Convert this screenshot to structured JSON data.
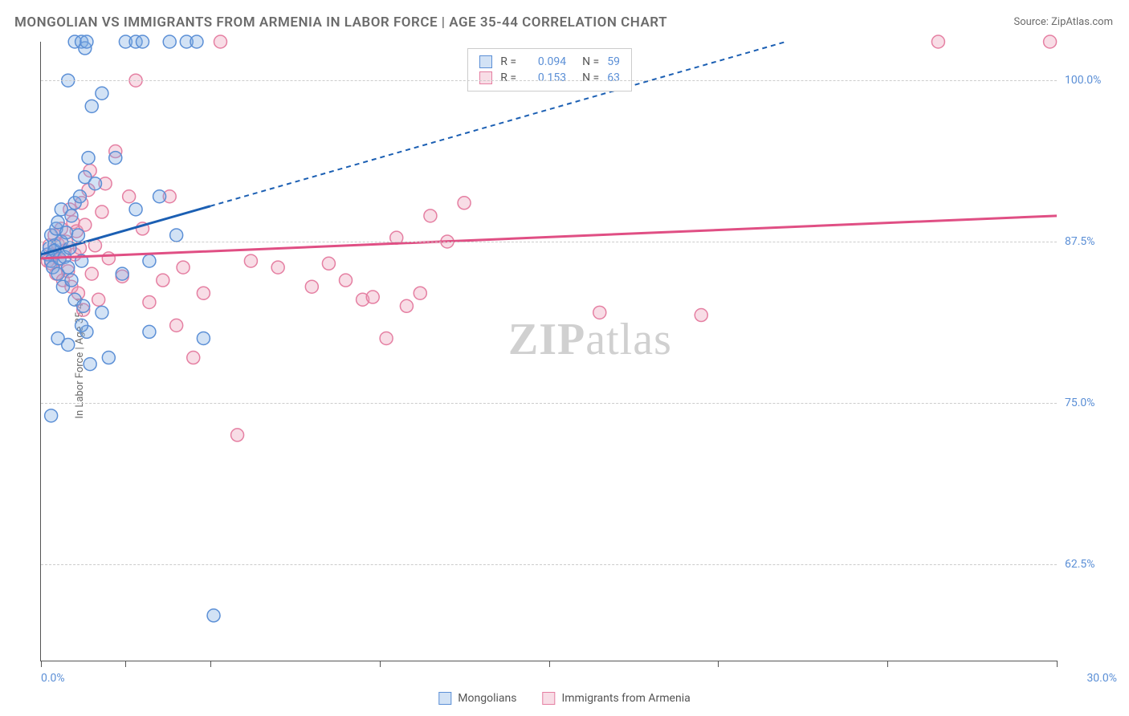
{
  "title": "MONGOLIAN VS IMMIGRANTS FROM ARMENIA IN LABOR FORCE | AGE 35-44 CORRELATION CHART",
  "source": "Source: ZipAtlas.com",
  "y_axis_title": "In Labor Force | Age 35-44",
  "watermark_bold": "ZIP",
  "watermark_rest": "atlas",
  "chart": {
    "type": "scatter",
    "xlim": [
      0,
      30
    ],
    "ylim": [
      55,
      103
    ],
    "y_ticks": [
      62.5,
      75.0,
      87.5,
      100.0
    ],
    "y_tick_labels": [
      "62.5%",
      "75.0%",
      "87.5%",
      "100.0%"
    ],
    "x_ticks": [
      0,
      2.5,
      5,
      10,
      15,
      20,
      25,
      30
    ],
    "x_label_min": "0.0%",
    "x_label_max": "30.0%",
    "background_color": "#ffffff",
    "grid_color": "#cccccc",
    "series": [
      {
        "name": "Mongolians",
        "color_fill": "rgba(127,172,226,0.35)",
        "color_stroke": "#5b8fd6",
        "trend_color": "#1b5fb3",
        "trend_solid_end_x": 5.0,
        "trend_y_start": 86.5,
        "trend_y_end": 103.0,
        "trend_dash_end_x": 22.0,
        "marker_radius": 8,
        "R": "0.094",
        "N": "59",
        "points": [
          [
            0.2,
            86.5
          ],
          [
            0.25,
            87
          ],
          [
            0.3,
            86
          ],
          [
            0.3,
            88
          ],
          [
            0.35,
            85.5
          ],
          [
            0.4,
            87.2
          ],
          [
            0.4,
            86.8
          ],
          [
            0.45,
            88.5
          ],
          [
            0.5,
            85
          ],
          [
            0.5,
            89
          ],
          [
            0.55,
            86.2
          ],
          [
            0.6,
            87.5
          ],
          [
            0.6,
            90
          ],
          [
            0.65,
            84
          ],
          [
            0.7,
            86.3
          ],
          [
            0.75,
            88.2
          ],
          [
            0.8,
            85.5
          ],
          [
            0.85,
            87
          ],
          [
            0.9,
            89.5
          ],
          [
            0.9,
            84.5
          ],
          [
            1.0,
            90.5
          ],
          [
            1.0,
            83
          ],
          [
            1.1,
            88
          ],
          [
            1.15,
            91
          ],
          [
            1.2,
            86
          ],
          [
            1.25,
            82.5
          ],
          [
            1.3,
            92.5
          ],
          [
            1.35,
            80.5
          ],
          [
            1.4,
            94
          ],
          [
            1.45,
            78
          ],
          [
            0.8,
            100
          ],
          [
            1.0,
            103
          ],
          [
            1.2,
            103
          ],
          [
            1.3,
            102.5
          ],
          [
            1.35,
            103
          ],
          [
            1.8,
            99
          ],
          [
            2.5,
            103
          ],
          [
            2.8,
            103
          ],
          [
            3.0,
            103
          ],
          [
            1.5,
            98
          ],
          [
            0.3,
            74
          ],
          [
            0.5,
            80
          ],
          [
            0.8,
            79.5
          ],
          [
            1.2,
            81
          ],
          [
            1.6,
            92
          ],
          [
            2.2,
            94
          ],
          [
            2.4,
            85
          ],
          [
            3.2,
            86
          ],
          [
            3.5,
            91
          ],
          [
            3.8,
            103
          ],
          [
            4.0,
            88
          ],
          [
            4.3,
            103
          ],
          [
            4.6,
            103
          ],
          [
            4.8,
            80
          ],
          [
            1.8,
            82
          ],
          [
            2.8,
            90
          ],
          [
            5.1,
            58.5
          ],
          [
            3.2,
            80.5
          ],
          [
            2.0,
            78.5
          ]
        ]
      },
      {
        "name": "Immigrants from Armenia",
        "color_fill": "rgba(236,159,184,0.35)",
        "color_stroke": "#e57fa2",
        "trend_color": "#e04f84",
        "trend_solid_end_x": 30.0,
        "trend_y_start": 86.2,
        "trend_y_end": 89.5,
        "trend_dash_end_x": 30.0,
        "marker_radius": 8,
        "R": "0.153",
        "N": "63",
        "points": [
          [
            0.2,
            86
          ],
          [
            0.25,
            87.2
          ],
          [
            0.3,
            85.8
          ],
          [
            0.35,
            86.5
          ],
          [
            0.4,
            88
          ],
          [
            0.45,
            85
          ],
          [
            0.5,
            87.3
          ],
          [
            0.55,
            86.1
          ],
          [
            0.6,
            88.5
          ],
          [
            0.65,
            84.5
          ],
          [
            0.7,
            86.8
          ],
          [
            0.75,
            87.5
          ],
          [
            0.8,
            85.2
          ],
          [
            0.85,
            90
          ],
          [
            0.9,
            84
          ],
          [
            0.95,
            89
          ],
          [
            1.0,
            86.5
          ],
          [
            1.05,
            88.3
          ],
          [
            1.1,
            83.5
          ],
          [
            1.15,
            87
          ],
          [
            1.2,
            90.5
          ],
          [
            1.25,
            82.2
          ],
          [
            1.3,
            88.8
          ],
          [
            1.4,
            91.5
          ],
          [
            1.45,
            93
          ],
          [
            1.5,
            85
          ],
          [
            1.6,
            87.2
          ],
          [
            1.7,
            83
          ],
          [
            1.8,
            89.8
          ],
          [
            1.9,
            92
          ],
          [
            2.0,
            86.2
          ],
          [
            2.2,
            94.5
          ],
          [
            2.4,
            84.8
          ],
          [
            2.6,
            91
          ],
          [
            2.8,
            100
          ],
          [
            3.0,
            88.5
          ],
          [
            3.2,
            82.8
          ],
          [
            3.6,
            84.5
          ],
          [
            3.8,
            91
          ],
          [
            4.0,
            81
          ],
          [
            4.2,
            85.5
          ],
          [
            4.5,
            78.5
          ],
          [
            4.8,
            83.5
          ],
          [
            5.3,
            103
          ],
          [
            5.8,
            72.5
          ],
          [
            6.2,
            86
          ],
          [
            7.0,
            85.5
          ],
          [
            8.0,
            84
          ],
          [
            8.5,
            85.8
          ],
          [
            9.0,
            84.5
          ],
          [
            9.5,
            83
          ],
          [
            9.8,
            83.2
          ],
          [
            10.2,
            80
          ],
          [
            10.8,
            82.5
          ],
          [
            10.5,
            87.8
          ],
          [
            11.2,
            83.5
          ],
          [
            11.5,
            89.5
          ],
          [
            12.0,
            87.5
          ],
          [
            12.5,
            90.5
          ],
          [
            16.5,
            82
          ],
          [
            19.5,
            81.8
          ],
          [
            26.5,
            103
          ],
          [
            29.8,
            103
          ]
        ]
      }
    ]
  },
  "stats_box": {
    "rows": [
      {
        "swatch": "blue",
        "r_label": "R =",
        "r_value": "0.094",
        "n_label": "N =",
        "n_value": "59"
      },
      {
        "swatch": "pink",
        "r_label": "R =",
        "r_value": "0.153",
        "n_label": "N =",
        "n_value": "63"
      }
    ]
  },
  "legend_bottom": [
    {
      "swatch": "blue",
      "label": "Mongolians"
    },
    {
      "swatch": "pink",
      "label": "Immigrants from Armenia"
    }
  ]
}
